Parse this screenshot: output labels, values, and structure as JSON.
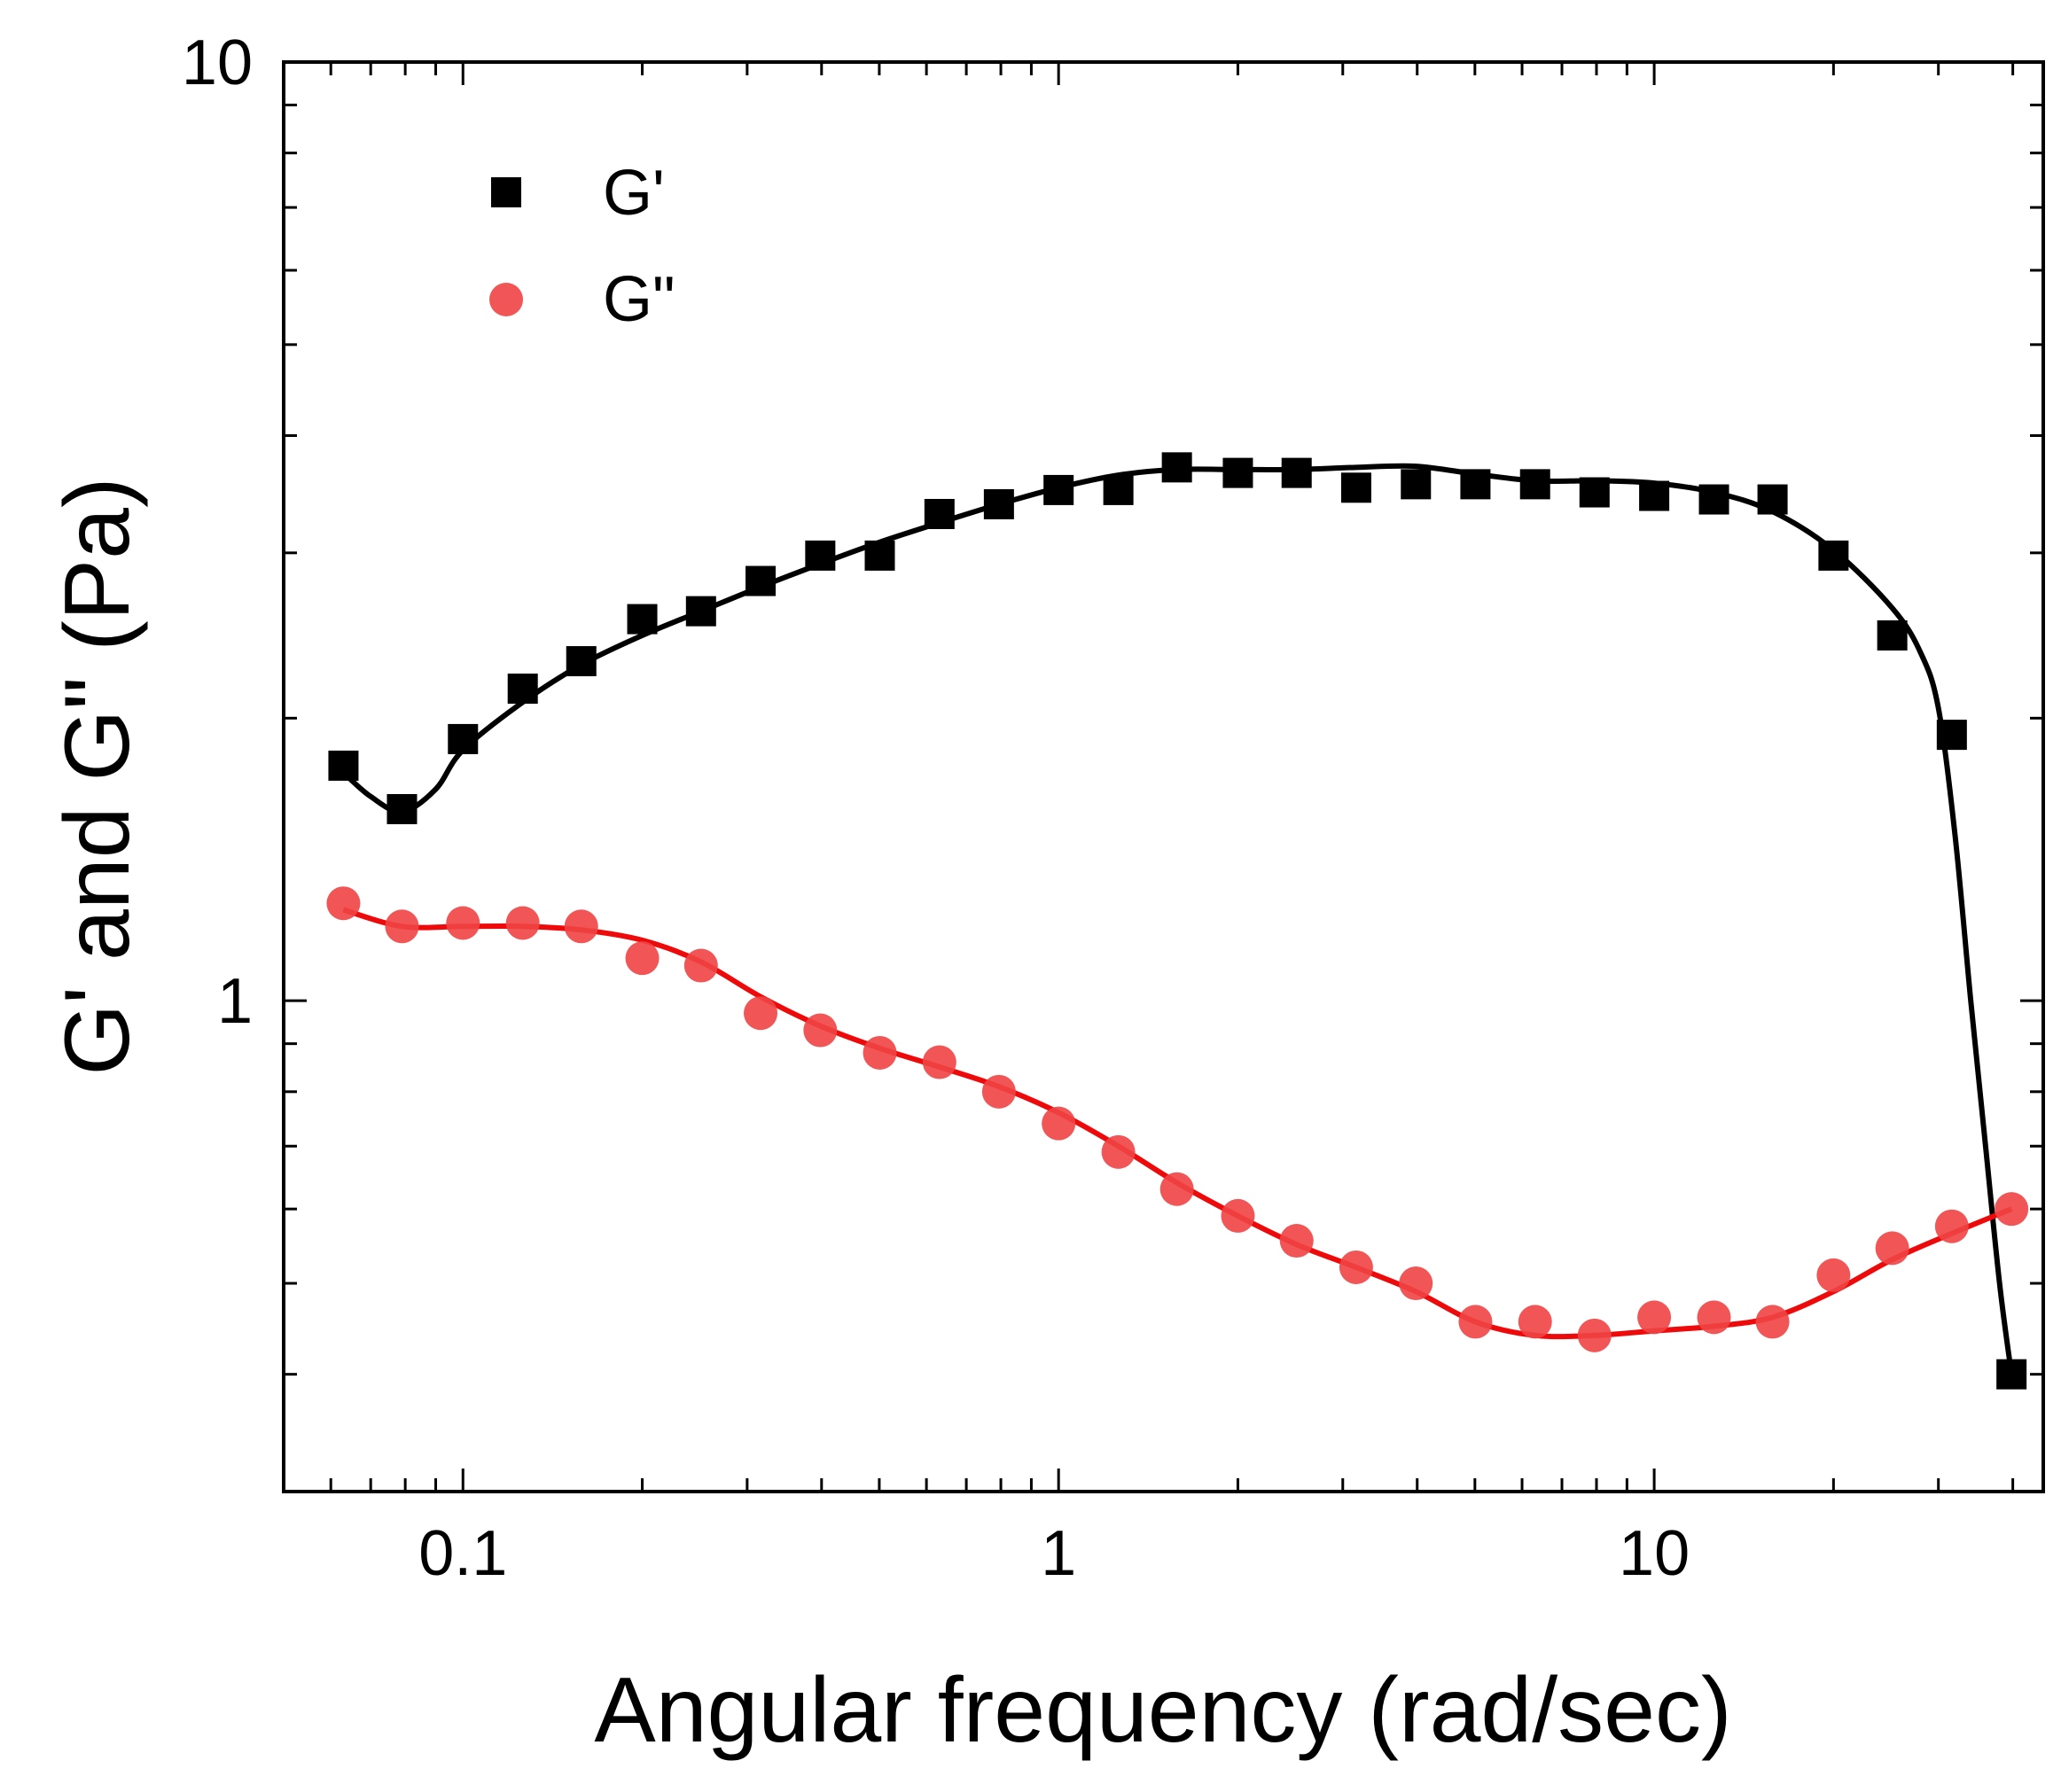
{
  "chart_data": {
    "type": "scatter",
    "xscale": "log",
    "yscale": "log",
    "xlim": [
      0.05,
      45
    ],
    "ylim": [
      0.3,
      10
    ],
    "xlabel": "Angular frequency (rad/sec)",
    "ylabel": "G' and G\" (Pa)",
    "x_tick_labels": [
      {
        "value": 0.1,
        "label": "0.1"
      },
      {
        "value": 1,
        "label": "1"
      },
      {
        "value": 10,
        "label": "10"
      }
    ],
    "y_tick_labels": [
      {
        "value": 1,
        "label": "1"
      },
      {
        "value": 10,
        "label": "10"
      }
    ],
    "grid": false,
    "legend_position": "top-left",
    "series": [
      {
        "name": "G'",
        "marker": "square",
        "color": "#000000",
        "points": [
          [
            0.063,
            1.78
          ],
          [
            0.079,
            1.6
          ],
          [
            0.1,
            1.9
          ],
          [
            0.126,
            2.15
          ],
          [
            0.158,
            2.3
          ],
          [
            0.2,
            2.55
          ],
          [
            0.251,
            2.6
          ],
          [
            0.316,
            2.8
          ],
          [
            0.398,
            2.98
          ],
          [
            0.501,
            2.98
          ],
          [
            0.631,
            3.3
          ],
          [
            0.794,
            3.38
          ],
          [
            1.0,
            3.5
          ],
          [
            1.26,
            3.5
          ],
          [
            1.58,
            3.7
          ],
          [
            2.0,
            3.65
          ],
          [
            2.51,
            3.65
          ],
          [
            3.16,
            3.52
          ],
          [
            3.98,
            3.55
          ],
          [
            5.01,
            3.55
          ],
          [
            6.31,
            3.55
          ],
          [
            7.94,
            3.48
          ],
          [
            10.0,
            3.45
          ],
          [
            12.6,
            3.42
          ],
          [
            15.8,
            3.42
          ],
          [
            20.0,
            2.98
          ],
          [
            25.1,
            2.45
          ],
          [
            31.6,
            1.92
          ],
          [
            39.8,
            0.4
          ]
        ],
        "fit_curve": [
          [
            0.063,
            1.75
          ],
          [
            0.07,
            1.65
          ],
          [
            0.079,
            1.59
          ],
          [
            0.09,
            1.68
          ],
          [
            0.1,
            1.85
          ],
          [
            0.126,
            2.08
          ],
          [
            0.158,
            2.28
          ],
          [
            0.2,
            2.45
          ],
          [
            0.251,
            2.6
          ],
          [
            0.316,
            2.76
          ],
          [
            0.398,
            2.92
          ],
          [
            0.501,
            3.08
          ],
          [
            0.631,
            3.23
          ],
          [
            0.794,
            3.38
          ],
          [
            1.0,
            3.52
          ],
          [
            1.26,
            3.63
          ],
          [
            1.58,
            3.68
          ],
          [
            2.0,
            3.68
          ],
          [
            2.51,
            3.68
          ],
          [
            3.16,
            3.7
          ],
          [
            3.98,
            3.71
          ],
          [
            5.01,
            3.64
          ],
          [
            6.31,
            3.58
          ],
          [
            7.94,
            3.58
          ],
          [
            10.0,
            3.56
          ],
          [
            12.6,
            3.48
          ],
          [
            15.8,
            3.32
          ],
          [
            20.0,
            3.02
          ],
          [
            25.1,
            2.62
          ],
          [
            28.0,
            2.35
          ],
          [
            30.0,
            2.05
          ],
          [
            32.0,
            1.5
          ],
          [
            34.0,
            1.0
          ],
          [
            36.0,
            0.7
          ],
          [
            38.0,
            0.5
          ],
          [
            39.8,
            0.4
          ]
        ]
      },
      {
        "name": "G\"",
        "marker": "circle",
        "color": "#EF4343",
        "line_color": "#EE0A0A",
        "points": [
          [
            0.063,
            1.27
          ],
          [
            0.079,
            1.2
          ],
          [
            0.1,
            1.21
          ],
          [
            0.126,
            1.21
          ],
          [
            0.158,
            1.2
          ],
          [
            0.2,
            1.11
          ],
          [
            0.251,
            1.09
          ],
          [
            0.316,
            0.97
          ],
          [
            0.398,
            0.93
          ],
          [
            0.501,
            0.88
          ],
          [
            0.631,
            0.86
          ],
          [
            0.794,
            0.8
          ],
          [
            1.0,
            0.74
          ],
          [
            1.26,
            0.69
          ],
          [
            1.58,
            0.63
          ],
          [
            2.0,
            0.59
          ],
          [
            2.51,
            0.555
          ],
          [
            3.16,
            0.52
          ],
          [
            3.98,
            0.5
          ],
          [
            5.01,
            0.455
          ],
          [
            6.31,
            0.455
          ],
          [
            7.94,
            0.44
          ],
          [
            10.0,
            0.46
          ],
          [
            12.6,
            0.46
          ],
          [
            15.8,
            0.455
          ],
          [
            20.0,
            0.51
          ],
          [
            25.1,
            0.545
          ],
          [
            31.6,
            0.575
          ],
          [
            39.8,
            0.6
          ]
        ],
        "fit_curve": [
          [
            0.063,
            1.25
          ],
          [
            0.079,
            1.2
          ],
          [
            0.1,
            1.2
          ],
          [
            0.126,
            1.2
          ],
          [
            0.158,
            1.19
          ],
          [
            0.2,
            1.16
          ],
          [
            0.251,
            1.1
          ],
          [
            0.316,
            1.01
          ],
          [
            0.398,
            0.94
          ],
          [
            0.501,
            0.89
          ],
          [
            0.631,
            0.85
          ],
          [
            0.794,
            0.81
          ],
          [
            1.0,
            0.76
          ],
          [
            1.26,
            0.7
          ],
          [
            1.58,
            0.64
          ],
          [
            2.0,
            0.59
          ],
          [
            2.51,
            0.55
          ],
          [
            3.16,
            0.52
          ],
          [
            3.98,
            0.49
          ],
          [
            5.01,
            0.455
          ],
          [
            6.31,
            0.44
          ],
          [
            7.94,
            0.44
          ],
          [
            10.0,
            0.445
          ],
          [
            12.6,
            0.45
          ],
          [
            15.8,
            0.46
          ],
          [
            20.0,
            0.49
          ],
          [
            25.1,
            0.53
          ],
          [
            31.6,
            0.565
          ],
          [
            39.8,
            0.6
          ]
        ]
      }
    ]
  }
}
